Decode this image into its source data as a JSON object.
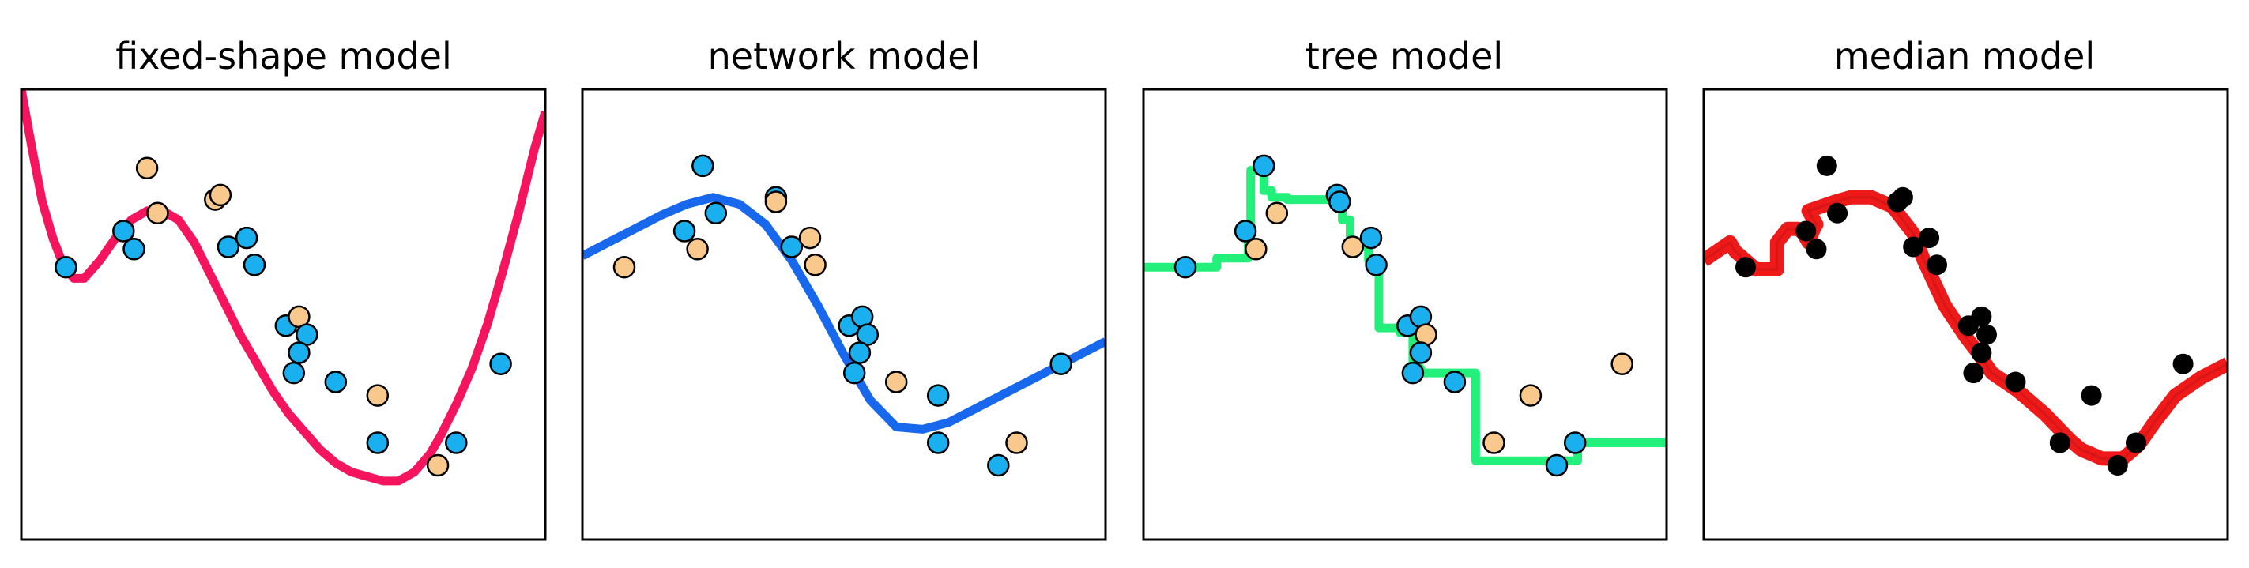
{
  "chart_data": [
    {
      "type": "scatter",
      "title": "fixed-shape model",
      "xlim": [
        0,
        1
      ],
      "ylim": [
        0,
        1
      ],
      "grid": false,
      "model_line_color": "#f5155f",
      "model_line": {
        "x": [
          0.0,
          0.02,
          0.04,
          0.06,
          0.08,
          0.1,
          0.12,
          0.15,
          0.18,
          0.21,
          0.24,
          0.27,
          0.3,
          0.33,
          0.36,
          0.39,
          0.42,
          0.45,
          0.48,
          0.51,
          0.54,
          0.57,
          0.6,
          0.63,
          0.66,
          0.69,
          0.72,
          0.75,
          0.78,
          0.8,
          0.83,
          0.86,
          0.89,
          0.92,
          0.95,
          0.98,
          1.0
        ],
        "y": [
          1.0,
          0.87,
          0.75,
          0.67,
          0.61,
          0.58,
          0.58,
          0.62,
          0.67,
          0.71,
          0.73,
          0.73,
          0.71,
          0.66,
          0.59,
          0.52,
          0.45,
          0.39,
          0.33,
          0.28,
          0.24,
          0.2,
          0.17,
          0.15,
          0.14,
          0.13,
          0.13,
          0.15,
          0.19,
          0.23,
          0.3,
          0.38,
          0.48,
          0.6,
          0.73,
          0.87,
          0.95
        ]
      },
      "points": [
        {
          "x": 0.085,
          "y": 0.605,
          "cls": "blue"
        },
        {
          "x": 0.195,
          "y": 0.685,
          "cls": "blue"
        },
        {
          "x": 0.215,
          "y": 0.645,
          "cls": "blue"
        },
        {
          "x": 0.24,
          "y": 0.825,
          "cls": "orange"
        },
        {
          "x": 0.26,
          "y": 0.725,
          "cls": "orange"
        },
        {
          "x": 0.37,
          "y": 0.755,
          "cls": "orange"
        },
        {
          "x": 0.38,
          "y": 0.765,
          "cls": "orange"
        },
        {
          "x": 0.395,
          "y": 0.65,
          "cls": "blue"
        },
        {
          "x": 0.43,
          "y": 0.67,
          "cls": "blue"
        },
        {
          "x": 0.445,
          "y": 0.61,
          "cls": "blue"
        },
        {
          "x": 0.505,
          "y": 0.475,
          "cls": "blue"
        },
        {
          "x": 0.53,
          "y": 0.495,
          "cls": "orange"
        },
        {
          "x": 0.545,
          "y": 0.455,
          "cls": "blue"
        },
        {
          "x": 0.53,
          "y": 0.415,
          "cls": "blue"
        },
        {
          "x": 0.52,
          "y": 0.37,
          "cls": "blue"
        },
        {
          "x": 0.6,
          "y": 0.35,
          "cls": "blue"
        },
        {
          "x": 0.68,
          "y": 0.32,
          "cls": "orange"
        },
        {
          "x": 0.68,
          "y": 0.215,
          "cls": "blue"
        },
        {
          "x": 0.795,
          "y": 0.165,
          "cls": "orange"
        },
        {
          "x": 0.83,
          "y": 0.215,
          "cls": "blue"
        },
        {
          "x": 0.915,
          "y": 0.39,
          "cls": "blue"
        }
      ]
    },
    {
      "type": "scatter",
      "title": "network model",
      "xlim": [
        0,
        1
      ],
      "ylim": [
        0,
        1
      ],
      "grid": false,
      "model_line_color": "#1868ee",
      "model_line": {
        "x": [
          0.0,
          0.05,
          0.1,
          0.15,
          0.2,
          0.25,
          0.3,
          0.35,
          0.4,
          0.45,
          0.5,
          0.55,
          0.6,
          0.65,
          0.7,
          0.75,
          0.8,
          0.85,
          0.9,
          0.95,
          1.0
        ],
        "y": [
          0.63,
          0.66,
          0.69,
          0.72,
          0.745,
          0.76,
          0.745,
          0.7,
          0.62,
          0.52,
          0.41,
          0.31,
          0.25,
          0.245,
          0.26,
          0.29,
          0.32,
          0.35,
          0.38,
          0.41,
          0.44
        ]
      },
      "points": [
        {
          "x": 0.08,
          "y": 0.605,
          "cls": "orange"
        },
        {
          "x": 0.195,
          "y": 0.685,
          "cls": "blue"
        },
        {
          "x": 0.22,
          "y": 0.645,
          "cls": "orange"
        },
        {
          "x": 0.23,
          "y": 0.83,
          "cls": "blue"
        },
        {
          "x": 0.255,
          "y": 0.725,
          "cls": "blue"
        },
        {
          "x": 0.37,
          "y": 0.76,
          "cls": "blue"
        },
        {
          "x": 0.37,
          "y": 0.75,
          "cls": "orange"
        },
        {
          "x": 0.4,
          "y": 0.65,
          "cls": "blue"
        },
        {
          "x": 0.435,
          "y": 0.67,
          "cls": "orange"
        },
        {
          "x": 0.445,
          "y": 0.61,
          "cls": "orange"
        },
        {
          "x": 0.51,
          "y": 0.475,
          "cls": "blue"
        },
        {
          "x": 0.535,
          "y": 0.495,
          "cls": "blue"
        },
        {
          "x": 0.545,
          "y": 0.455,
          "cls": "blue"
        },
        {
          "x": 0.53,
          "y": 0.415,
          "cls": "blue"
        },
        {
          "x": 0.52,
          "y": 0.37,
          "cls": "blue"
        },
        {
          "x": 0.6,
          "y": 0.35,
          "cls": "orange"
        },
        {
          "x": 0.68,
          "y": 0.32,
          "cls": "blue"
        },
        {
          "x": 0.68,
          "y": 0.215,
          "cls": "blue"
        },
        {
          "x": 0.795,
          "y": 0.165,
          "cls": "blue"
        },
        {
          "x": 0.83,
          "y": 0.215,
          "cls": "orange"
        },
        {
          "x": 0.915,
          "y": 0.39,
          "cls": "blue"
        }
      ]
    },
    {
      "type": "scatter",
      "title": "tree model",
      "xlim": [
        0,
        1
      ],
      "ylim": [
        0,
        1
      ],
      "grid": false,
      "model_line_color": "#22f07a",
      "model_line": {
        "x": [
          0.0,
          0.14,
          0.14,
          0.2,
          0.2,
          0.205,
          0.205,
          0.23,
          0.23,
          0.245,
          0.245,
          0.275,
          0.275,
          0.38,
          0.38,
          0.395,
          0.395,
          0.43,
          0.43,
          0.45,
          0.45,
          0.49,
          0.49,
          0.515,
          0.515,
          0.53,
          0.53,
          0.635,
          0.635,
          0.83,
          0.83,
          1.0
        ],
        "y": [
          0.605,
          0.605,
          0.625,
          0.625,
          0.69,
          0.69,
          0.82,
          0.82,
          0.775,
          0.775,
          0.76,
          0.76,
          0.755,
          0.755,
          0.71,
          0.71,
          0.65,
          0.65,
          0.62,
          0.62,
          0.47,
          0.47,
          0.46,
          0.46,
          0.38,
          0.38,
          0.37,
          0.37,
          0.175,
          0.175,
          0.215,
          0.215
        ]
      },
      "points": [
        {
          "x": 0.08,
          "y": 0.605,
          "cls": "blue"
        },
        {
          "x": 0.195,
          "y": 0.685,
          "cls": "blue"
        },
        {
          "x": 0.215,
          "y": 0.645,
          "cls": "orange"
        },
        {
          "x": 0.23,
          "y": 0.83,
          "cls": "blue"
        },
        {
          "x": 0.255,
          "y": 0.725,
          "cls": "orange"
        },
        {
          "x": 0.37,
          "y": 0.765,
          "cls": "blue"
        },
        {
          "x": 0.375,
          "y": 0.75,
          "cls": "blue"
        },
        {
          "x": 0.4,
          "y": 0.65,
          "cls": "orange"
        },
        {
          "x": 0.435,
          "y": 0.67,
          "cls": "blue"
        },
        {
          "x": 0.445,
          "y": 0.61,
          "cls": "blue"
        },
        {
          "x": 0.505,
          "y": 0.475,
          "cls": "blue"
        },
        {
          "x": 0.53,
          "y": 0.495,
          "cls": "blue"
        },
        {
          "x": 0.54,
          "y": 0.455,
          "cls": "orange"
        },
        {
          "x": 0.53,
          "y": 0.415,
          "cls": "blue"
        },
        {
          "x": 0.515,
          "y": 0.37,
          "cls": "blue"
        },
        {
          "x": 0.595,
          "y": 0.35,
          "cls": "blue"
        },
        {
          "x": 0.67,
          "y": 0.215,
          "cls": "orange"
        },
        {
          "x": 0.74,
          "y": 0.32,
          "cls": "orange"
        },
        {
          "x": 0.79,
          "y": 0.165,
          "cls": "blue"
        },
        {
          "x": 0.825,
          "y": 0.215,
          "cls": "blue"
        },
        {
          "x": 0.915,
          "y": 0.39,
          "cls": "orange"
        }
      ]
    },
    {
      "type": "scatter",
      "title": "median model",
      "xlim": [
        0,
        1
      ],
      "ylim": [
        0,
        1
      ],
      "grid": false,
      "model_line_color": "#ee1a1a",
      "model_line": {
        "x": [
          0.0,
          0.05,
          0.06,
          0.1,
          0.14,
          0.14,
          0.16,
          0.18,
          0.19,
          0.2,
          0.21,
          0.215,
          0.2,
          0.25,
          0.28,
          0.32,
          0.36,
          0.38,
          0.4,
          0.42,
          0.44,
          0.46,
          0.5,
          0.52,
          0.55,
          0.6,
          0.65,
          0.7,
          0.72,
          0.76,
          0.8,
          0.83,
          0.86,
          0.9,
          0.95,
          1.0
        ],
        "y": [
          0.62,
          0.66,
          0.64,
          0.6,
          0.6,
          0.66,
          0.69,
          0.69,
          0.68,
          0.66,
          0.69,
          0.7,
          0.73,
          0.75,
          0.76,
          0.76,
          0.74,
          0.71,
          0.68,
          0.62,
          0.57,
          0.52,
          0.45,
          0.42,
          0.37,
          0.33,
          0.28,
          0.22,
          0.2,
          0.18,
          0.18,
          0.21,
          0.26,
          0.32,
          0.36,
          0.39
        ]
      },
      "points": [
        {
          "x": 0.08,
          "y": 0.605,
          "cls": "black"
        },
        {
          "x": 0.195,
          "y": 0.685,
          "cls": "black"
        },
        {
          "x": 0.215,
          "y": 0.645,
          "cls": "black"
        },
        {
          "x": 0.235,
          "y": 0.83,
          "cls": "black"
        },
        {
          "x": 0.255,
          "y": 0.725,
          "cls": "black"
        },
        {
          "x": 0.38,
          "y": 0.76,
          "cls": "black"
        },
        {
          "x": 0.37,
          "y": 0.75,
          "cls": "black"
        },
        {
          "x": 0.4,
          "y": 0.65,
          "cls": "black"
        },
        {
          "x": 0.43,
          "y": 0.67,
          "cls": "black"
        },
        {
          "x": 0.445,
          "y": 0.61,
          "cls": "black"
        },
        {
          "x": 0.505,
          "y": 0.475,
          "cls": "black"
        },
        {
          "x": 0.53,
          "y": 0.495,
          "cls": "black"
        },
        {
          "x": 0.54,
          "y": 0.455,
          "cls": "black"
        },
        {
          "x": 0.53,
          "y": 0.415,
          "cls": "black"
        },
        {
          "x": 0.515,
          "y": 0.37,
          "cls": "black"
        },
        {
          "x": 0.595,
          "y": 0.35,
          "cls": "black"
        },
        {
          "x": 0.74,
          "y": 0.32,
          "cls": "black"
        },
        {
          "x": 0.68,
          "y": 0.215,
          "cls": "black"
        },
        {
          "x": 0.79,
          "y": 0.165,
          "cls": "black"
        },
        {
          "x": 0.825,
          "y": 0.215,
          "cls": "black"
        },
        {
          "x": 0.915,
          "y": 0.39,
          "cls": "black"
        }
      ]
    }
  ],
  "colors": {
    "blue": "#1ab0f0",
    "orange": "#f9c88c",
    "black": "#000000",
    "frame": "#000000"
  }
}
